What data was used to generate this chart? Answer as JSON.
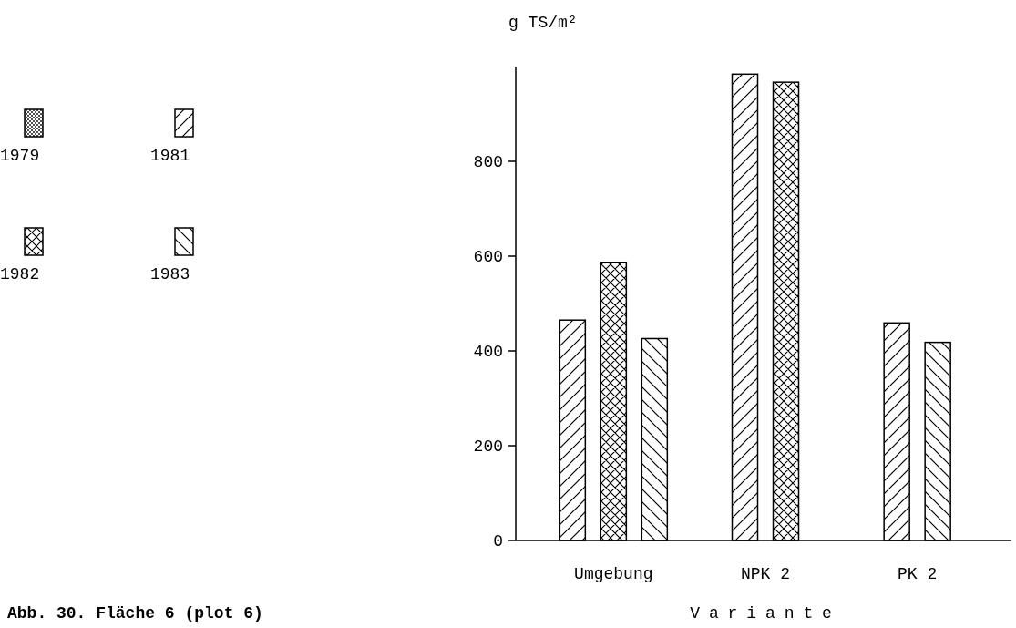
{
  "chart_data": {
    "type": "bar",
    "xlabel": "Variante",
    "ylabel": "g TS/m²",
    "categories": [
      "Umgebung",
      "NPK 2",
      "PK 2"
    ],
    "series": [
      {
        "name": "1979",
        "color": "#000000",
        "values": [
          null,
          null,
          null
        ]
      },
      {
        "name": "1981",
        "color": "#000000",
        "values": [
          465,
          984,
          459
        ]
      },
      {
        "name": "1982",
        "color": "#000000",
        "values": [
          587,
          967,
          null
        ]
      },
      {
        "name": "1983",
        "color": "#000000",
        "values": [
          426,
          null,
          418
        ]
      }
    ],
    "ylim": [
      0,
      1000
    ],
    "yticks": [
      0,
      200,
      400,
      600,
      800
    ],
    "legend": "left",
    "grid": false,
    "annotations": [
      "Abb. 30. Fläche 6 (plot 6)"
    ]
  }
}
